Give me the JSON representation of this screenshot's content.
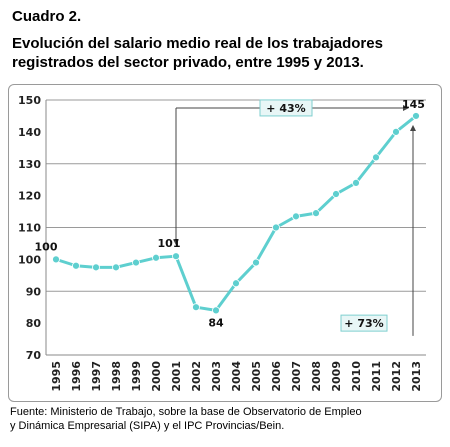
{
  "header": {
    "cuadro": "Cuadro 2.",
    "title_line1": "Evolución del salario medio real de los trabajadores",
    "title_line2": "registrados del sector privado, entre 1995 y 2013."
  },
  "source": {
    "line1": "Fuente: Ministerio de Trabajo, sobre la base de Observatorio de Empleo",
    "line2": "y Dinámica Empresarial (SIPA) y el IPC Provincias/Bein."
  },
  "colors": {
    "line": "#5ecfcf",
    "grid": "#9a9a9a",
    "box_fill": "#e8f6f6",
    "box_border": "#7fcfcf"
  },
  "chart_data": {
    "type": "line",
    "title": "Evolución del salario medio real de los trabajadores registrados del sector privado, entre 1995 y 2013.",
    "x": [
      "1995",
      "1996",
      "1997",
      "1998",
      "1999",
      "2000",
      "2001",
      "2002",
      "2003",
      "2004",
      "2005",
      "2006",
      "2007",
      "2008",
      "2009",
      "2010",
      "2011",
      "2012",
      "2013"
    ],
    "series": [
      {
        "values": [
          100,
          98,
          97.5,
          97.5,
          99,
          100.5,
          101,
          85,
          84,
          92.5,
          99,
          110,
          113.5,
          114.5,
          120.5,
          124,
          132,
          140,
          145
        ]
      }
    ],
    "ylim": [
      70,
      150
    ],
    "yticks": [
      70,
      80,
      90,
      100,
      110,
      120,
      130,
      140,
      150
    ],
    "gridlines": [
      90,
      110,
      130,
      150
    ],
    "data_labels": [
      {
        "index": 0,
        "text": "100"
      },
      {
        "index": 6,
        "text": "101"
      },
      {
        "index": 8,
        "text": "84"
      },
      {
        "index": 18,
        "text": "145"
      }
    ],
    "annotations": [
      {
        "text": "+ 43%",
        "from_index": 6,
        "to_index": 18
      },
      {
        "text": "+ 73%",
        "from_index": 8,
        "to_index": 18
      }
    ]
  }
}
